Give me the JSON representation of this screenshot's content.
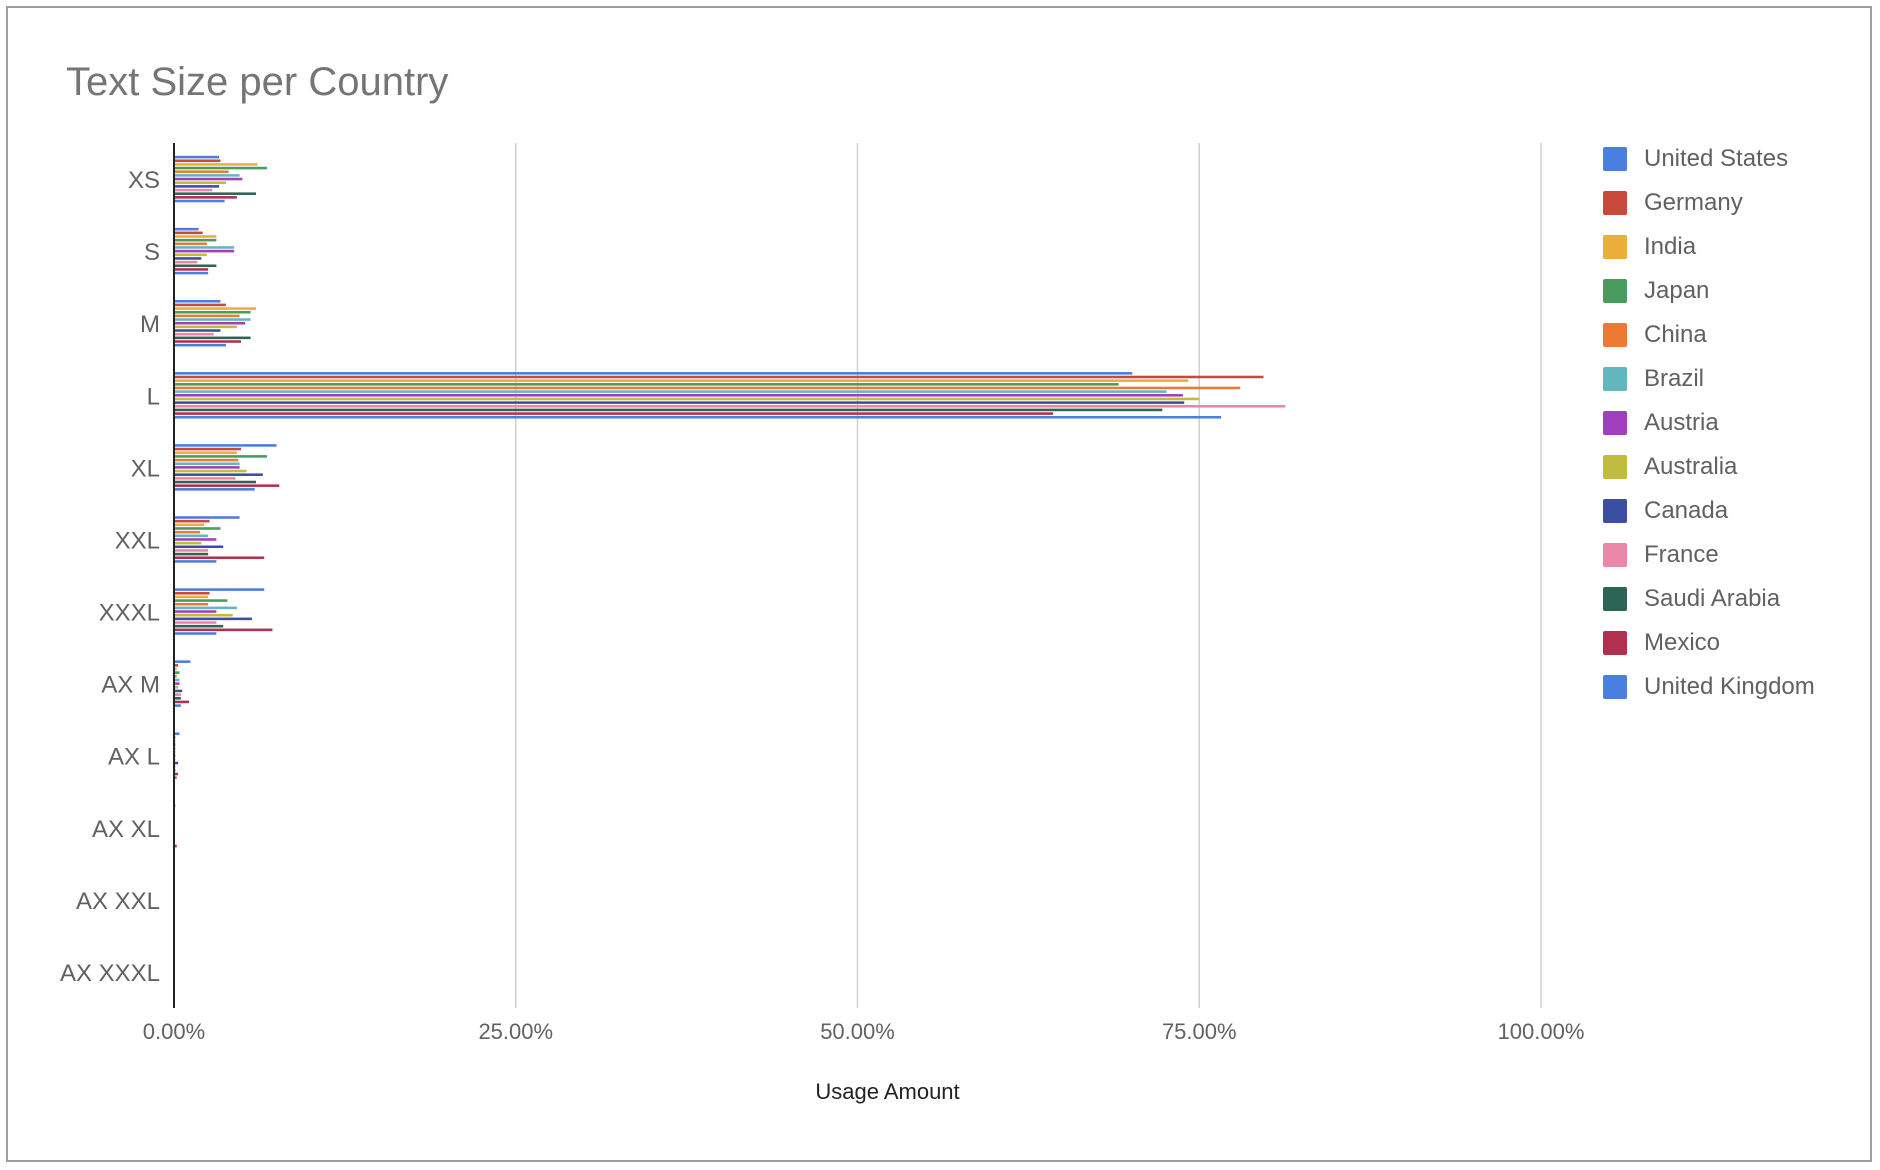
{
  "chart_data": {
    "type": "bar",
    "orientation": "horizontal",
    "title": "Text Size per Country",
    "xlabel": "Usage Amount",
    "ylabel": "",
    "xlim": [
      0,
      100
    ],
    "xticks": [
      "0.00%",
      "25.00%",
      "50.00%",
      "75.00%",
      "100.00%"
    ],
    "grid": "vertical",
    "legend_position": "right",
    "categories": [
      "XS",
      "S",
      "M",
      "L",
      "XL",
      "XXL",
      "XXXL",
      "AX M",
      "AX L",
      "AX XL",
      "AX XXL",
      "AX XXXL"
    ],
    "series": [
      {
        "name": "United States",
        "color": "#4a7fe0",
        "values": [
          3.3,
          1.8,
          3.4,
          70.1,
          7.5,
          4.8,
          6.6,
          1.2,
          0.4,
          0.1,
          0.05,
          0.02
        ]
      },
      {
        "name": "Germany",
        "color": "#c94a3a",
        "values": [
          3.4,
          2.1,
          3.8,
          79.7,
          4.9,
          2.6,
          2.6,
          0.3,
          0.1,
          0.05,
          0.02,
          0.01
        ]
      },
      {
        "name": "India",
        "color": "#ecae3a",
        "values": [
          6.1,
          3.1,
          6.0,
          74.2,
          4.6,
          2.2,
          2.5,
          0.2,
          0.1,
          0.05,
          0.02,
          0.01
        ]
      },
      {
        "name": "Japan",
        "color": "#4a9b5e",
        "values": [
          6.8,
          3.1,
          5.6,
          69.1,
          6.8,
          3.4,
          3.9,
          0.4,
          0.1,
          0.05,
          0.02,
          0.01
        ]
      },
      {
        "name": "China",
        "color": "#ec7a35",
        "values": [
          4.0,
          2.4,
          4.8,
          78.0,
          4.7,
          1.9,
          2.5,
          0.2,
          0.1,
          0.05,
          0.02,
          0.01
        ]
      },
      {
        "name": "Brazil",
        "color": "#62b7bf",
        "values": [
          4.8,
          4.4,
          5.6,
          72.6,
          4.8,
          2.5,
          4.6,
          0.4,
          0.1,
          0.05,
          0.02,
          0.01
        ]
      },
      {
        "name": "Austria",
        "color": "#a23fbd",
        "values": [
          5.0,
          4.4,
          5.2,
          73.8,
          4.8,
          3.1,
          3.1,
          0.4,
          0.1,
          0.05,
          0.02,
          0.01
        ]
      },
      {
        "name": "Australia",
        "color": "#c1bb3e",
        "values": [
          3.8,
          2.4,
          4.6,
          75.0,
          5.3,
          2.0,
          4.3,
          0.3,
          0.1,
          0.05,
          0.02,
          0.01
        ]
      },
      {
        "name": "Canada",
        "color": "#3b4ea0",
        "values": [
          3.3,
          2.0,
          3.4,
          73.9,
          6.5,
          3.6,
          5.7,
          0.6,
          0.3,
          0.05,
          0.02,
          0.01
        ]
      },
      {
        "name": "France",
        "color": "#ea86a8",
        "values": [
          2.8,
          1.7,
          2.9,
          81.3,
          4.5,
          2.5,
          3.1,
          0.5,
          0.1,
          0.05,
          0.02,
          0.01
        ]
      },
      {
        "name": "Saudi Arabia",
        "color": "#2c6456",
        "values": [
          6.0,
          3.1,
          5.6,
          72.3,
          6.0,
          2.5,
          3.6,
          0.5,
          0.1,
          0.05,
          0.02,
          0.01
        ]
      },
      {
        "name": "Mexico",
        "color": "#b1304f",
        "values": [
          4.6,
          2.5,
          4.9,
          64.3,
          7.7,
          6.6,
          7.2,
          1.1,
          0.3,
          0.2,
          0.05,
          0.02
        ]
      },
      {
        "name": "United Kingdom",
        "color": "#4a7fe0",
        "values": [
          3.7,
          2.5,
          3.8,
          76.6,
          5.9,
          3.1,
          3.1,
          0.5,
          0.2,
          0.05,
          0.02,
          0.01
        ]
      }
    ]
  }
}
